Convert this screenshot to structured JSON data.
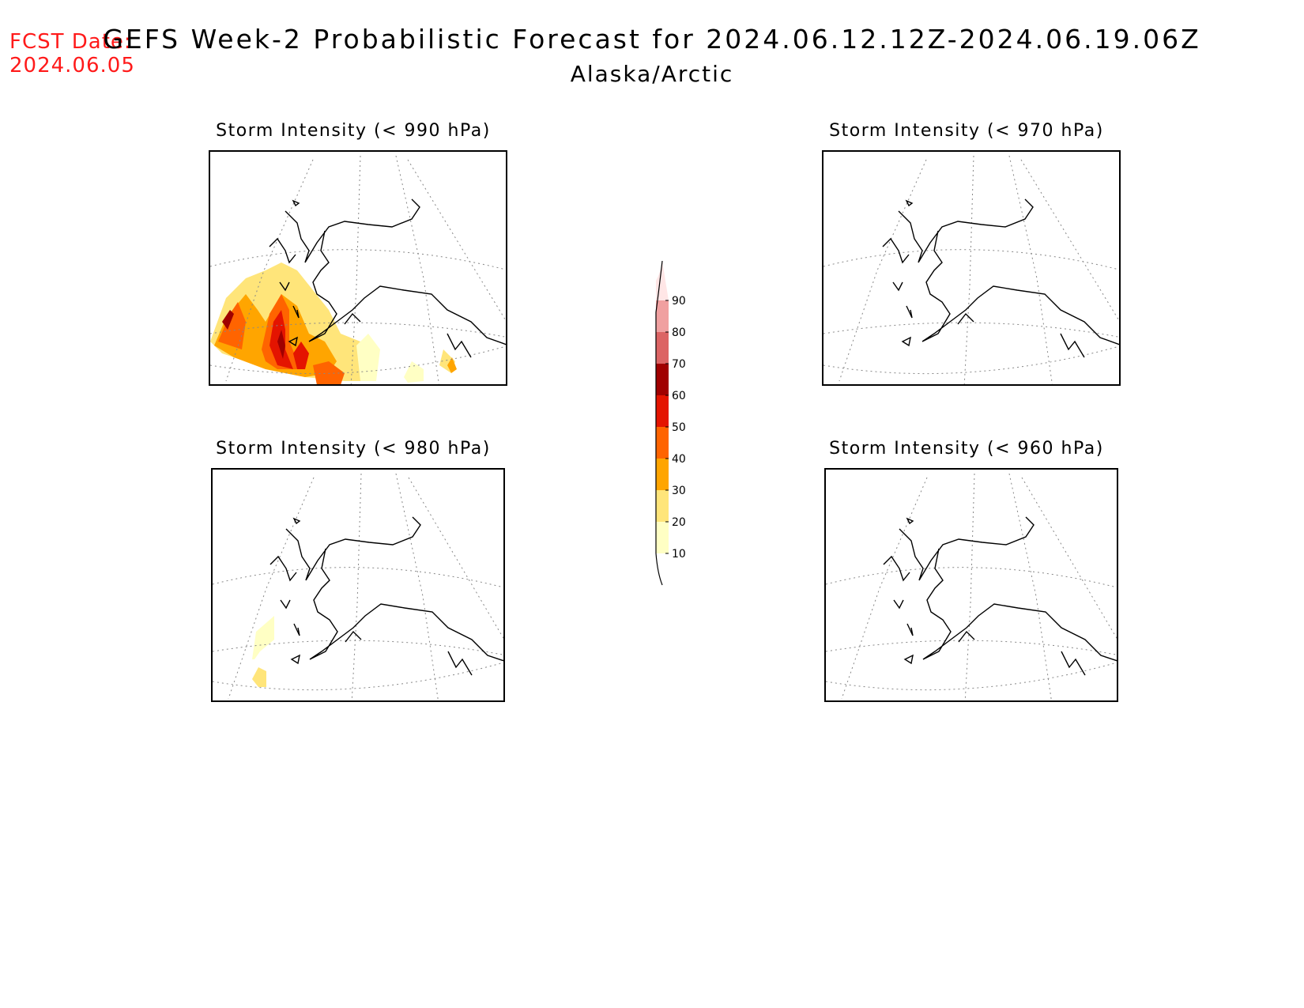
{
  "header": {
    "fcst_label": "FCST Date:",
    "fcst_date": "2024.06.05",
    "title": "GEFS Week-2 Probabilistic Forecast for 2024.06.12.12Z-2024.06.19.06Z",
    "subtitle": "Alaska/Arctic"
  },
  "panels": [
    {
      "id": "p990",
      "title": "Storm Intensity (< 990 hPa)",
      "shading": "high"
    },
    {
      "id": "p970",
      "title": "Storm Intensity (< 970 hPa)",
      "shading": "none"
    },
    {
      "id": "p980",
      "title": "Storm Intensity (< 980 hPa)",
      "shading": "low"
    },
    {
      "id": "p960",
      "title": "Storm Intensity (< 960 hPa)",
      "shading": "none"
    }
  ],
  "colorbar": {
    "levels": [
      "10",
      "20",
      "30",
      "40",
      "50",
      "60",
      "70",
      "80",
      "90"
    ],
    "colors": [
      "#ffffc4",
      "#ffe57a",
      "#ffa500",
      "#ff6400",
      "#e41400",
      "#a00000",
      "#dc6464",
      "#f0a0a0",
      "#ffe6e6"
    ]
  }
}
